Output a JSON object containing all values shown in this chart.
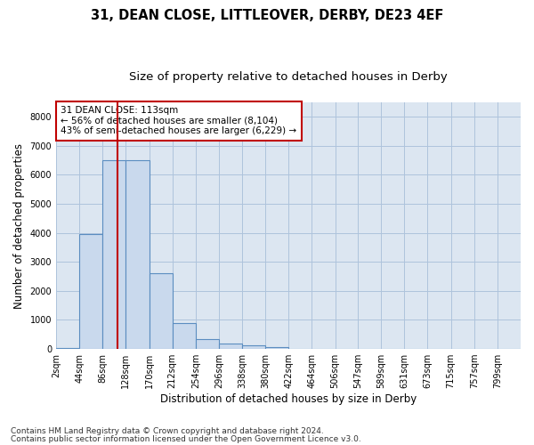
{
  "title_line1": "31, DEAN CLOSE, LITTLEOVER, DERBY, DE23 4EF",
  "title_line2": "Size of property relative to detached houses in Derby",
  "xlabel": "Distribution of detached houses by size in Derby",
  "ylabel": "Number of detached properties",
  "footnote1": "Contains HM Land Registry data © Crown copyright and database right 2024.",
  "footnote2": "Contains public sector information licensed under the Open Government Licence v3.0.",
  "annotation_title": "31 DEAN CLOSE: 113sqm",
  "annotation_line2": "← 56% of detached houses are smaller (8,104)",
  "annotation_line3": "43% of semi-detached houses are larger (6,229) →",
  "property_size_sqm": 113,
  "bar_edges": [
    2,
    44,
    86,
    128,
    170,
    212,
    254,
    296,
    338,
    380,
    422,
    464,
    506,
    547,
    589,
    631,
    673,
    715,
    757,
    799,
    841
  ],
  "bar_heights": [
    30,
    3950,
    6500,
    6500,
    2600,
    900,
    350,
    200,
    120,
    50,
    0,
    0,
    0,
    0,
    0,
    0,
    0,
    0,
    0,
    0
  ],
  "bar_color": "#c9d9ed",
  "bar_edge_color": "#5b8dc0",
  "vline_color": "#c00000",
  "vline_x": 113,
  "ylim": [
    0,
    8500
  ],
  "yticks": [
    0,
    1000,
    2000,
    3000,
    4000,
    5000,
    6000,
    7000,
    8000
  ],
  "grid_color": "#aec3dc",
  "background_color": "#dce6f1",
  "annotation_box_color": "#ffffff",
  "annotation_box_edge": "#c00000",
  "title_fontsize": 10.5,
  "subtitle_fontsize": 9.5,
  "axis_label_fontsize": 8.5,
  "tick_fontsize": 7,
  "annotation_fontsize": 7.5,
  "footnote_fontsize": 6.5
}
